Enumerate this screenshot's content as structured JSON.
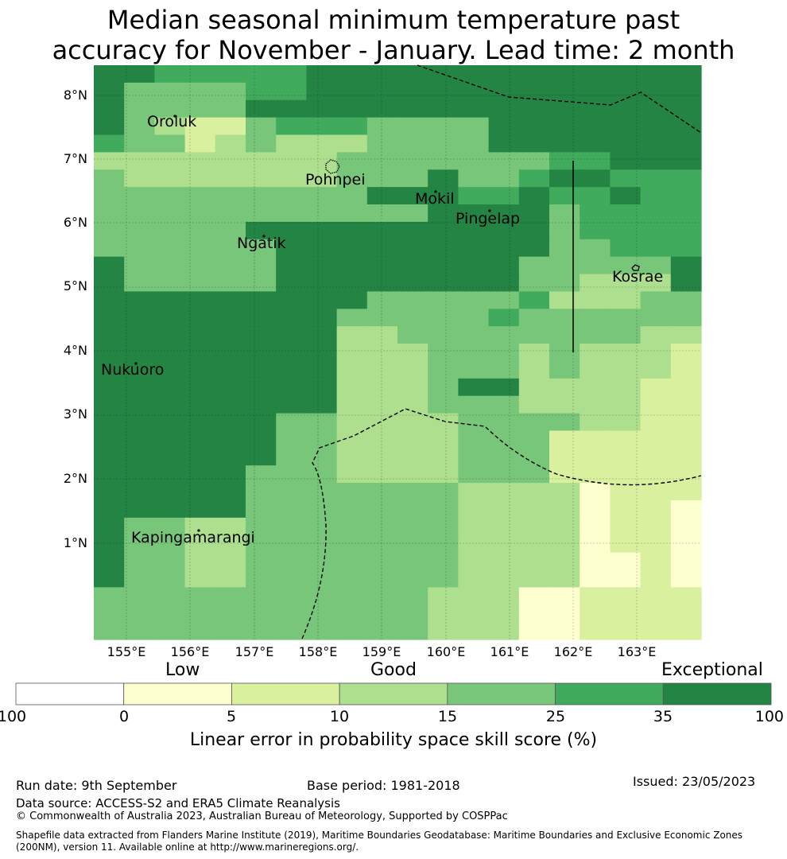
{
  "title": {
    "line1": "Median seasonal minimum temperature past",
    "line2": "accuracy for November - January. Lead time: 2 month"
  },
  "map": {
    "lat_labels": [
      "8°N",
      "7°N",
      "6°N",
      "5°N",
      "4°N",
      "3°N",
      "2°N",
      "1°N"
    ],
    "lon_labels": [
      "155°E",
      "156°E",
      "157°E",
      "158°E",
      "159°E",
      "160°E",
      "161°E",
      "162°E",
      "163°E"
    ],
    "places": [
      "Oroluk",
      "Pohnpei",
      "Mokil",
      "Pingelap",
      "Ngatik",
      "Kosrae",
      "Nukuoro",
      "Kapingamarangi"
    ],
    "grid_rows": [
      "66555556666666666666",
      "64444556666666666666",
      "64444666666666666666",
      "64322455544446666666",
      "54423433344446666666",
      "33333333444444455666",
      "43333333444644566555",
      "44444444466655655655",
      "44444444444666645555",
      "44444666666666645555",
      "44444466666666644555",
      "64444466666666444446",
      "64444466666666443336",
      "66666666644444533344",
      "66666666444445444444",
      "66666666334444444433",
      "66666666333444343332",
      "66666666333444343332",
      "66666666333466333322",
      "66666666333444333322",
      "66666644333344443322",
      "66666644333344422222",
      "66666644333344422222",
      "66666444333344422222",
      "66666444444433331222",
      "66666444444433331221",
      "64433444444433331221",
      "64433444444433331221",
      "64433444444433331121",
      "64433444444433331121",
      "44444444444333112222",
      "44444444444333112222",
      "44444444444333112222"
    ],
    "color_scale": [
      "#ffffff",
      "#feffcf",
      "#d9f09e",
      "#addf8e",
      "#78c679",
      "#41ab5d",
      "#238443"
    ]
  },
  "colorbar": {
    "categories": [
      "Low",
      "Good",
      "Exceptional"
    ],
    "ticks": [
      "-100",
      "0",
      "5",
      "10",
      "15",
      "25",
      "35",
      "100"
    ],
    "title": "Linear error in probability space skill score (%)"
  },
  "footer": {
    "run_date": "Run date: 9th September",
    "base_period": "Base period: 1981-2018",
    "issued": "Issued: 23/05/2023",
    "data_source": "Data source: ACCESS-S2 and ERA5 Climate Reanalysis",
    "copyright": "© Commonwealth of Australia 2023, Australian Bureau of Meteorology, Supported by COSPPac",
    "shapefile": "Shapefile data extracted from Flanders Marine Institute (2019), Maritime Boundaries Geodatabase: Maritime Boundaries and Exclusive Economic Zones (200NM), version 11. Available online at http://www.marineregions.org/."
  }
}
